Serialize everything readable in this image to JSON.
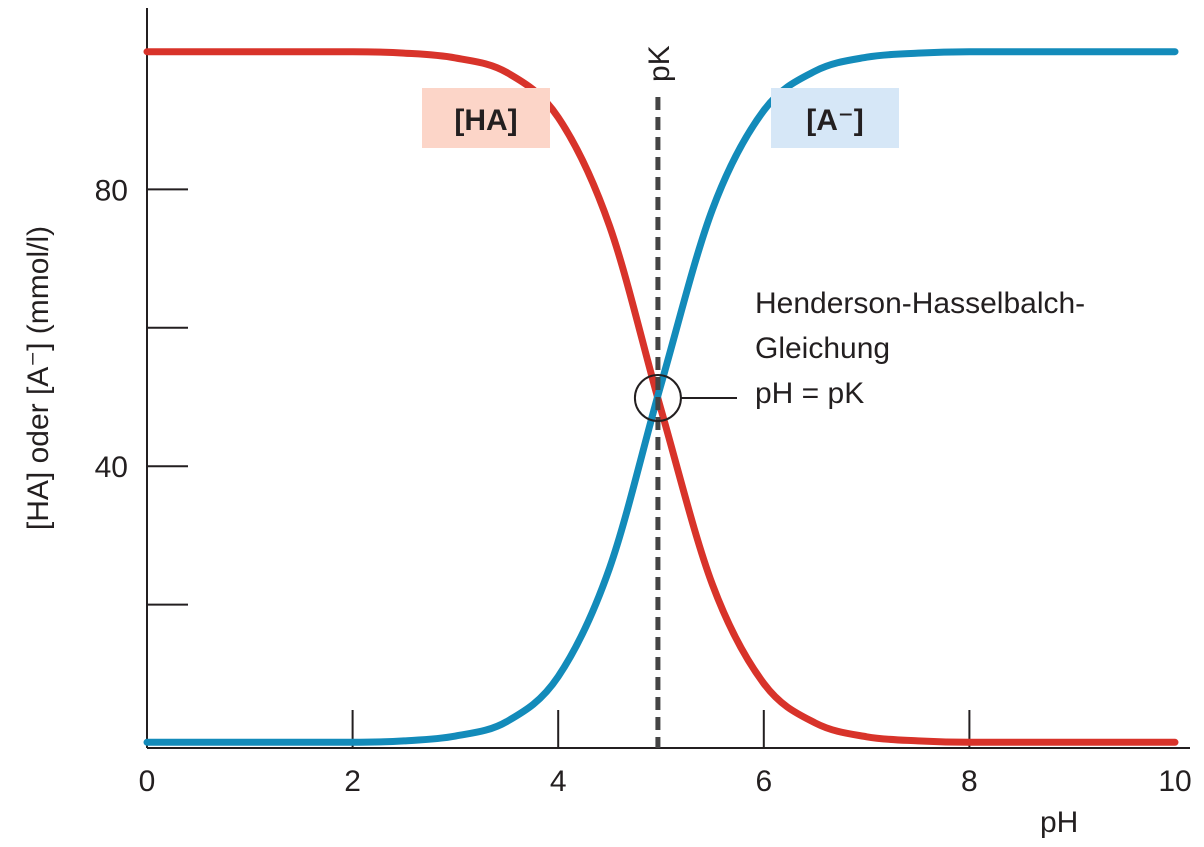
{
  "chart_data": {
    "type": "line",
    "xlabel": "pH",
    "ylabel": "[HA] oder [A⁻] (mmol/l)",
    "xlim": [
      0,
      10
    ],
    "ylim": [
      0,
      100
    ],
    "x_ticks": [
      0,
      2,
      4,
      6,
      8,
      10
    ],
    "x_minor_ticks": [
      2,
      4,
      6,
      8
    ],
    "y_ticks_labeled": [
      40,
      80
    ],
    "y_minor_ticks": [
      20,
      60
    ],
    "grid": false,
    "colors": {
      "HA": "#d8332a",
      "A": "#138bba",
      "label_bg_HA": "#fcd5c8",
      "label_bg_A": "#d6e7f7",
      "axis": "#231f20"
    },
    "pK": 4.97,
    "pK_label": "pK",
    "series": [
      {
        "name": "[HA]",
        "x": [
          0,
          1,
          2,
          2.5,
          3,
          3.5,
          4,
          4.5,
          5,
          5.5,
          6,
          6.5,
          7,
          7.5,
          8,
          9,
          10
        ],
        "values": [
          99.9,
          99.9,
          99.9,
          99.7,
          99,
          96.9,
          90.4,
          74.7,
          48.2,
          22.9,
          8.6,
          2.9,
          0.9,
          0.3,
          0.1,
          0.1,
          0.1
        ]
      },
      {
        "name": "[A⁻]",
        "x": [
          0,
          1,
          2,
          2.5,
          3,
          3.5,
          4,
          4.5,
          5,
          5.5,
          6,
          6.5,
          7,
          7.5,
          8,
          9,
          10
        ],
        "values": [
          0.1,
          0.1,
          0.1,
          0.3,
          1,
          3.1,
          9.6,
          25.3,
          51.8,
          77.1,
          91.4,
          97.1,
          99.1,
          99.7,
          99.9,
          99.9,
          99.9
        ]
      }
    ],
    "annotations": {
      "intersection": {
        "x": 4.97,
        "y": 50
      },
      "text_lines": [
        "Henderson-Hasselbalch-",
        "Gleichung",
        "pH = pK"
      ]
    }
  }
}
